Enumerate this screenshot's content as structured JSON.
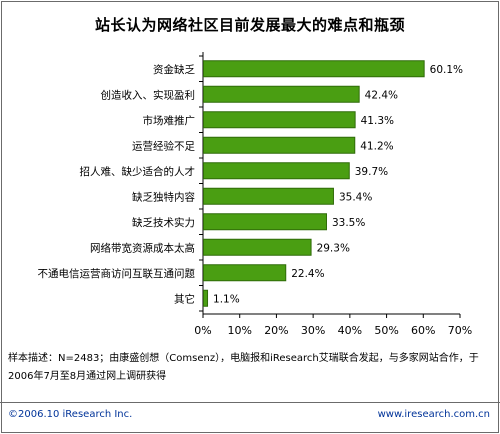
{
  "chart_data": {
    "type": "bar",
    "orientation": "horizontal",
    "title": "站长认为网络社区目前发展最大的难点和瓶颈",
    "categories": [
      "资金缺乏",
      "创造收入、实现盈利",
      "市场难推广",
      "运营经验不足",
      "招人难、缺少适合的人才",
      "缺乏独特内容",
      "缺乏技术实力",
      "网络带宽资源成本太高",
      "不通电信运营商访问互联互通问题",
      "其它"
    ],
    "values": [
      60.1,
      42.4,
      41.3,
      41.2,
      39.7,
      35.4,
      33.5,
      29.3,
      22.4,
      1.1
    ],
    "value_labels": [
      "60.1%",
      "42.4%",
      "41.3%",
      "41.2%",
      "39.7%",
      "35.4%",
      "33.5%",
      "29.3%",
      "22.4%",
      "1.1%"
    ],
    "xlim": [
      0,
      70
    ],
    "x_ticks": [
      "0%",
      "10%",
      "20%",
      "30%",
      "40%",
      "50%",
      "60%",
      "70%"
    ],
    "bar_color": "#4a9e12",
    "bar_edge_color": "#2f6b08",
    "grid": false,
    "legend": "none"
  },
  "note": "样本描述：N=2483；由康盛创想（Comsenz），电脑报和iResearch艾瑞联合发起，与多家网站合作，于2006年7月至8月通过网上调研获得",
  "copyright": "©2006.10 iResearch Inc.",
  "website": "www.iresearch.com.cn"
}
